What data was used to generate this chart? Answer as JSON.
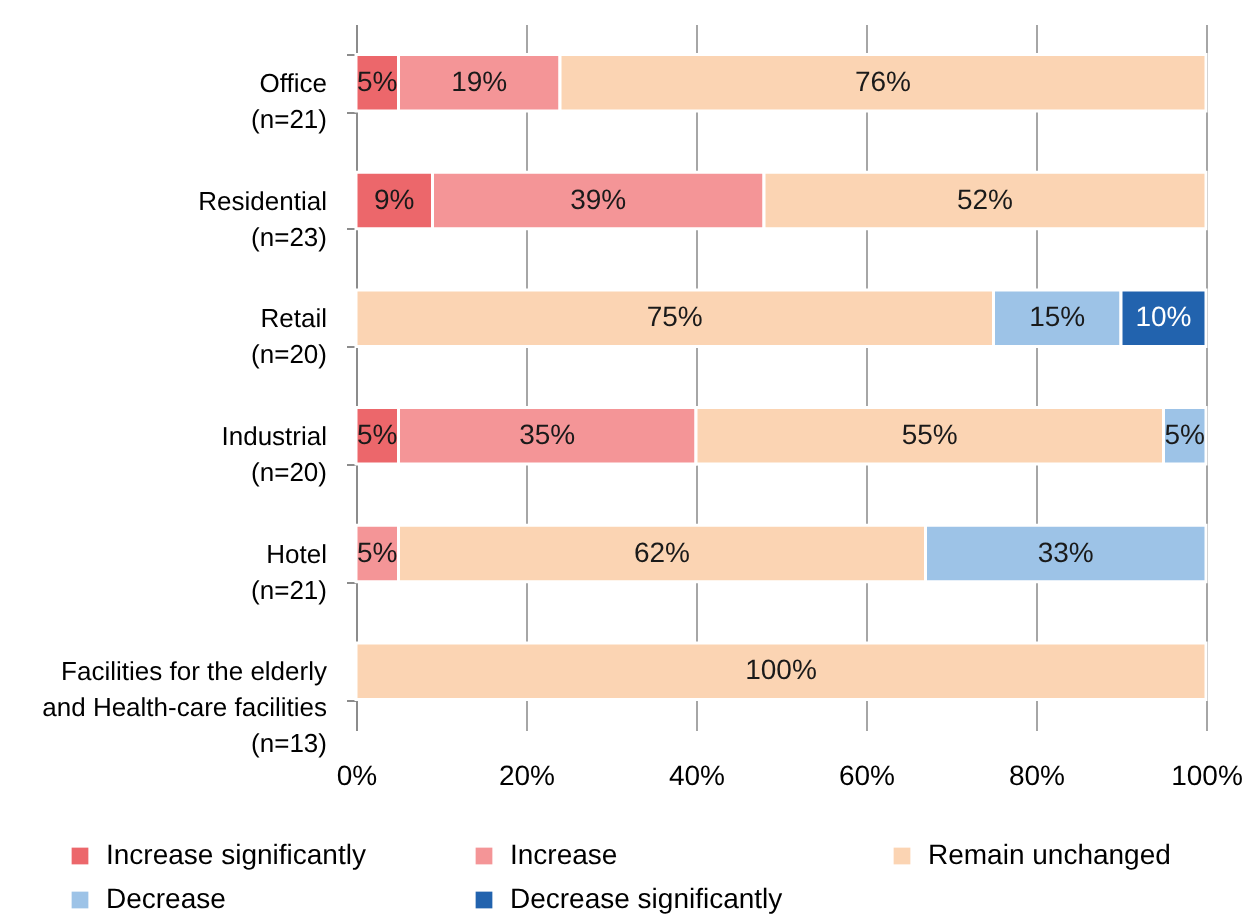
{
  "chart_data": {
    "type": "bar",
    "orientation": "horizontal",
    "stacked": true,
    "categories": [
      "Office\n(n=21)",
      "Residential\n(n=23)",
      "Retail\n(n=20)",
      "Industrial\n(n=20)",
      "Hotel\n(n=21)",
      "Facilities for the elderly\nand Health-care facilities\n(n=13)"
    ],
    "series": [
      {
        "name": "Increase significantly",
        "color": "#ec676b",
        "values": [
          5,
          9,
          null,
          5,
          null,
          null
        ],
        "value_labels": [
          "5%",
          "9%",
          null,
          "5%",
          null,
          null
        ]
      },
      {
        "name": "Increase",
        "color": "#f49597",
        "values": [
          19,
          39,
          null,
          35,
          5,
          null
        ],
        "value_labels": [
          "19%",
          "39%",
          null,
          "35%",
          "5%",
          null
        ]
      },
      {
        "name": "Remain unchanged",
        "color": "#fbd4b3",
        "values": [
          76,
          52,
          75,
          55,
          62,
          100
        ],
        "value_labels": [
          "76%",
          "52%",
          "75%",
          "55%",
          "62%",
          "100%"
        ]
      },
      {
        "name": "Decrease",
        "color": "#9dc3e7",
        "values": [
          null,
          null,
          15,
          5,
          33,
          null
        ],
        "value_labels": [
          null,
          null,
          "15%",
          "5%",
          "33%",
          null
        ]
      },
      {
        "name": "Decrease significantly",
        "color": "#2263ae",
        "values": [
          null,
          null,
          10,
          null,
          null,
          null
        ],
        "value_labels": [
          null,
          null,
          "10%",
          null,
          null,
          null
        ]
      }
    ],
    "xlim": [
      0,
      100
    ],
    "xticks": [
      {
        "value": 0,
        "label": "0%"
      },
      {
        "value": 20,
        "label": "20%"
      },
      {
        "value": 40,
        "label": "40%"
      },
      {
        "value": 60,
        "label": "60%"
      },
      {
        "value": 80,
        "label": "80%"
      },
      {
        "value": 100,
        "label": "100%"
      }
    ],
    "grid": "x",
    "legend": "bottom"
  }
}
